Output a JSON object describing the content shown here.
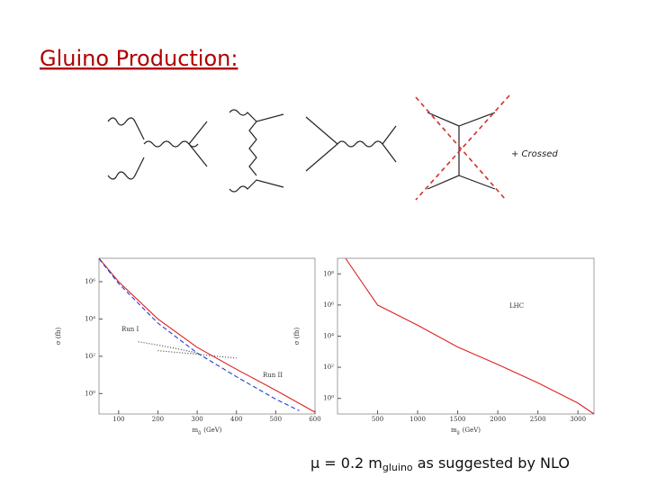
{
  "title": "Gluino Production:",
  "crossed_label": "+ Crossed",
  "caption": {
    "mu": "μ = 0.2 m",
    "sub": "gluino",
    "rest": " as suggested by NLO"
  },
  "chart_data": [
    {
      "type": "line",
      "ylabel": "σ (fb)",
      "xlabel": "m",
      "xlabel_sub": "g̃",
      "xlabel_unit": "(GeV)",
      "ylog": true,
      "xlim": [
        50,
        600
      ],
      "ylim": [
        0.08,
        18000000
      ],
      "xticks": [
        100,
        200,
        300,
        400,
        500,
        600
      ],
      "yticks": [
        {
          "value": 1,
          "label": "10⁰"
        },
        {
          "value": 100,
          "label": "10²"
        },
        {
          "value": 10000,
          "label": "10⁴"
        },
        {
          "value": 1000000,
          "label": "10⁶"
        }
      ],
      "annotations": [
        "Run I",
        "Run II"
      ],
      "series": [
        {
          "color": "#e02020",
          "dash": "solid",
          "x": [
            50,
            100,
            200,
            300,
            400,
            500,
            600
          ],
          "values": [
            18000000,
            1000000,
            10000,
            300,
            20,
            1.5,
            0.1
          ]
        },
        {
          "color": "#2040d0",
          "dash": "dashed",
          "x": [
            50,
            100,
            200,
            300,
            400,
            500,
            560
          ],
          "values": [
            17000000,
            800000,
            6000,
            150,
            8,
            0.5,
            0.12
          ]
        },
        {
          "color": "#333333",
          "dash": "dotted",
          "x": [
            150,
            200,
            250,
            300
          ],
          "values": [
            600,
            400,
            250,
            150
          ]
        },
        {
          "color": "#333333",
          "dash": "dotted",
          "x": [
            200,
            250,
            300,
            350,
            400
          ],
          "values": [
            200,
            160,
            130,
            100,
            80
          ]
        }
      ]
    },
    {
      "type": "line",
      "ylabel": "σ (fb)",
      "xlabel": "m",
      "xlabel_sub": "g̃",
      "xlabel_unit": "(GeV)",
      "ylog": true,
      "xlim": [
        0,
        3200
      ],
      "ylim": [
        0.1,
        1000000000
      ],
      "xticks": [
        500,
        1000,
        1500,
        2000,
        2500,
        3000
      ],
      "yticks": [
        {
          "value": 1,
          "label": "10⁰"
        },
        {
          "value": 100,
          "label": "10²"
        },
        {
          "value": 10000,
          "label": "10⁴"
        },
        {
          "value": 1000000,
          "label": "10⁶"
        },
        {
          "value": 100000000,
          "label": "10⁸"
        }
      ],
      "annotations": [
        "LHC"
      ],
      "series": [
        {
          "color": "#e02020",
          "dash": "solid",
          "x": [
            100,
            500,
            1000,
            1500,
            2000,
            2500,
            3000,
            3200
          ],
          "values": [
            1000000000,
            1000000,
            50000,
            2000,
            150,
            10,
            0.5,
            0.1
          ]
        }
      ]
    }
  ]
}
